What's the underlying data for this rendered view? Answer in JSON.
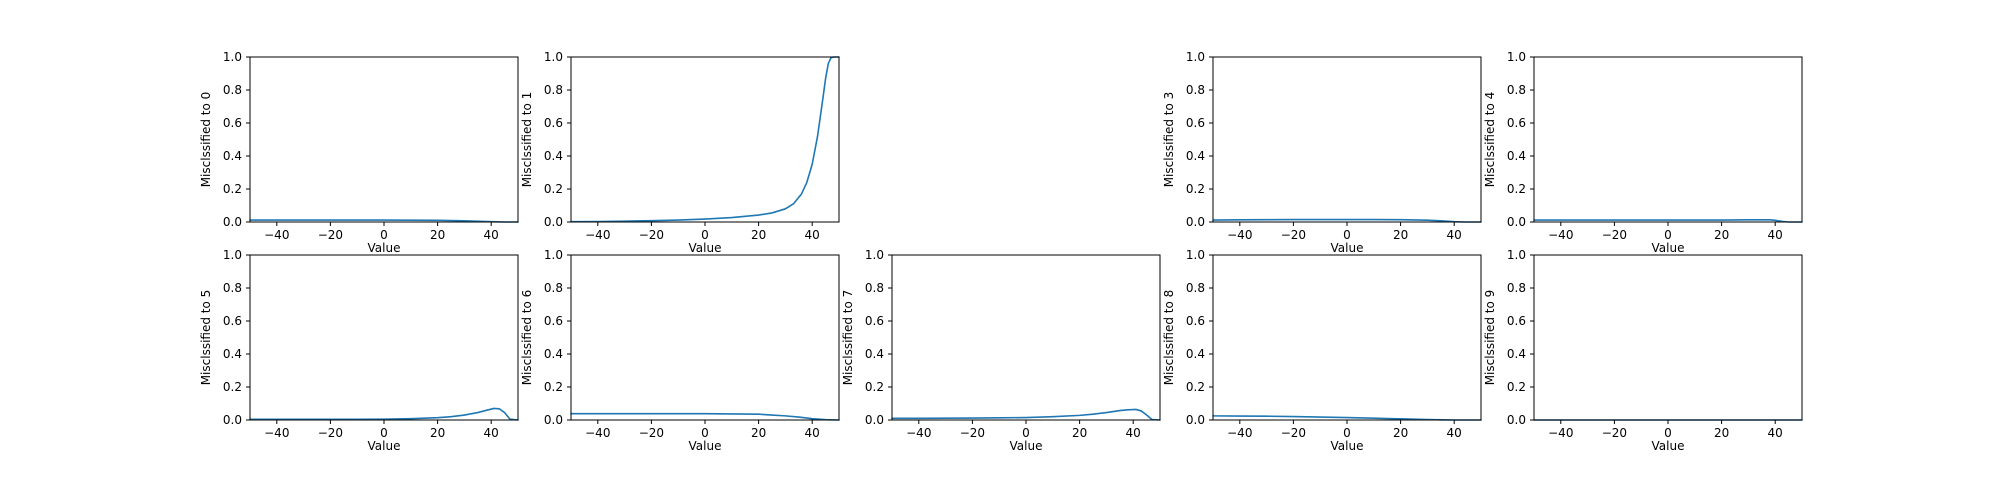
{
  "chart_data": {
    "type": "line",
    "line_color": "#1f77b4",
    "shared": {
      "xlabel": "Value",
      "xlim": [
        -50,
        50
      ],
      "ylim": [
        0,
        1
      ],
      "xticks": [
        -40,
        -20,
        0,
        20,
        40
      ],
      "yticks": [
        0.0,
        0.2,
        0.4,
        0.6,
        0.8,
        1.0
      ],
      "xtick_labels": [
        "−40",
        "−20",
        "0",
        "20",
        "40"
      ],
      "ytick_labels": [
        "0.0",
        "0.2",
        "0.4",
        "0.6",
        "0.8",
        "1.0"
      ],
      "grid": false
    },
    "panels": [
      {
        "ylabel": "Misclssified to 0",
        "empty": false,
        "x": [
          -50,
          -40,
          -30,
          -20,
          -10,
          0,
          10,
          20,
          30,
          40,
          45,
          50
        ],
        "y": [
          0.012,
          0.012,
          0.012,
          0.012,
          0.012,
          0.012,
          0.011,
          0.01,
          0.007,
          0.002,
          0.0,
          0.0
        ]
      },
      {
        "ylabel": "Misclssified to 1",
        "empty": false,
        "x": [
          -50,
          -40,
          -30,
          -20,
          -10,
          0,
          10,
          20,
          25,
          30,
          33,
          36,
          38,
          40,
          42,
          44,
          45,
          46,
          47,
          48,
          50
        ],
        "y": [
          0.002,
          0.003,
          0.005,
          0.008,
          0.012,
          0.018,
          0.027,
          0.042,
          0.055,
          0.08,
          0.11,
          0.17,
          0.24,
          0.35,
          0.52,
          0.75,
          0.87,
          0.96,
          0.995,
          1.0,
          1.0
        ]
      },
      {
        "ylabel": "",
        "empty": true,
        "x": [],
        "y": []
      },
      {
        "ylabel": "Misclssified to 3",
        "empty": false,
        "x": [
          -50,
          -40,
          -30,
          -20,
          -10,
          0,
          10,
          20,
          30,
          35,
          40,
          44,
          50
        ],
        "y": [
          0.012,
          0.013,
          0.014,
          0.015,
          0.015,
          0.015,
          0.015,
          0.014,
          0.011,
          0.007,
          0.002,
          0.0,
          0.0
        ]
      },
      {
        "ylabel": "Misclssified to 4",
        "empty": false,
        "x": [
          -50,
          -40,
          -30,
          -20,
          -10,
          0,
          10,
          20,
          30,
          38,
          40,
          43,
          45,
          50
        ],
        "y": [
          0.012,
          0.012,
          0.012,
          0.012,
          0.012,
          0.012,
          0.012,
          0.012,
          0.013,
          0.013,
          0.01,
          0.003,
          0.0,
          0.0
        ]
      },
      {
        "ylabel": "Misclssified to 5",
        "empty": false,
        "x": [
          -50,
          -40,
          -30,
          -20,
          -10,
          0,
          10,
          20,
          25,
          30,
          35,
          38,
          41,
          43,
          45,
          47,
          50
        ],
        "y": [
          0.004,
          0.004,
          0.004,
          0.004,
          0.004,
          0.005,
          0.008,
          0.014,
          0.02,
          0.03,
          0.045,
          0.058,
          0.07,
          0.068,
          0.045,
          0.005,
          0.0
        ]
      },
      {
        "ylabel": "Misclssified to 6",
        "empty": false,
        "x": [
          -50,
          -40,
          -30,
          -20,
          -10,
          0,
          10,
          20,
          25,
          30,
          35,
          40,
          45,
          50
        ],
        "y": [
          0.038,
          0.038,
          0.038,
          0.038,
          0.038,
          0.038,
          0.037,
          0.035,
          0.03,
          0.025,
          0.018,
          0.008,
          0.002,
          0.0
        ]
      },
      {
        "ylabel": "Misclssified to 7",
        "empty": false,
        "x": [
          -50,
          -40,
          -30,
          -20,
          -10,
          0,
          10,
          20,
          25,
          30,
          35,
          38,
          41,
          43,
          45,
          47,
          50
        ],
        "y": [
          0.01,
          0.01,
          0.011,
          0.012,
          0.013,
          0.015,
          0.02,
          0.028,
          0.035,
          0.045,
          0.057,
          0.062,
          0.064,
          0.055,
          0.03,
          0.003,
          0.0
        ]
      },
      {
        "ylabel": "Misclssified to 8",
        "empty": false,
        "x": [
          -50,
          -40,
          -30,
          -20,
          -10,
          0,
          10,
          20,
          30,
          35,
          40,
          50
        ],
        "y": [
          0.025,
          0.024,
          0.023,
          0.021,
          0.018,
          0.015,
          0.011,
          0.007,
          0.003,
          0.001,
          0.0,
          0.0
        ]
      },
      {
        "ylabel": "Misclssified to 9",
        "empty": false,
        "x": [
          -50,
          -30,
          -10,
          10,
          30,
          50
        ],
        "y": [
          0.0,
          0.0,
          0.0,
          0.0,
          0.0,
          0.0
        ]
      }
    ]
  }
}
